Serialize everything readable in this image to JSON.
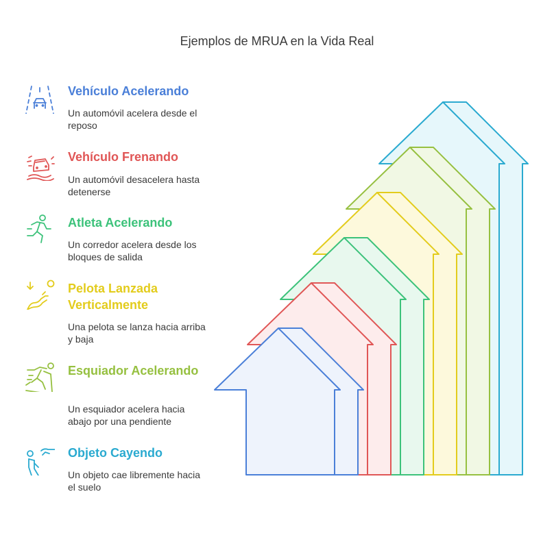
{
  "title": "Ejemplos de MRUA en la Vida Real",
  "items": [
    {
      "heading": "Vehículo Acelerando",
      "desc": "Un automóvil acelera desde el reposo",
      "color": "#4a7fd8",
      "fill": "#eef3fc",
      "icon": "car-road-icon"
    },
    {
      "heading": "Vehículo Frenando",
      "desc": "Un automóvil desacelera hasta detenerse",
      "color": "#e05656",
      "fill": "#fdecec",
      "icon": "car-braking-icon"
    },
    {
      "heading": "Atleta Acelerando",
      "desc": "Un corredor acelera desde los bloques de salida",
      "color": "#3cc27a",
      "fill": "#e8f8ee",
      "icon": "runner-icon"
    },
    {
      "heading": "Pelota Lanzada Verticalmente",
      "desc": "Una pelota se lanza hacia arriba y baja",
      "color": "#e3cc1c",
      "fill": "#fdf9dc",
      "icon": "ball-throw-icon"
    },
    {
      "heading": "Esquiador Acelerando",
      "desc": "Un esquiador acelera hacia abajo por una pendiente",
      "color": "#96c040",
      "fill": "#f1f8e4",
      "icon": "skier-icon"
    },
    {
      "heading": "Objeto Cayendo",
      "desc": "Un objeto cae libremente hacia el suelo",
      "color": "#2aaad0",
      "fill": "#e6f7fb",
      "icon": "falling-person-icon"
    }
  ]
}
